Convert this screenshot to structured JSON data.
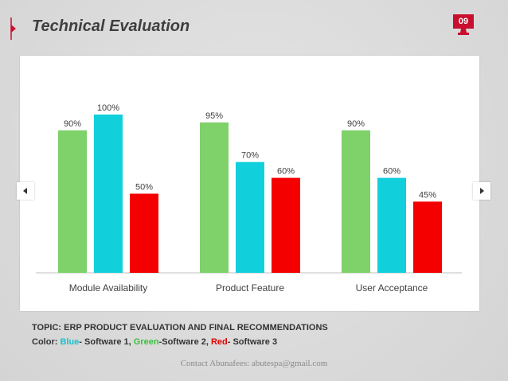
{
  "title": "Technical Evaluation",
  "page_number": "09",
  "colors": {
    "accent": "#c8102e",
    "blue": "#11d0dc",
    "green": "#7fd16a",
    "red": "#f50000"
  },
  "nav": {
    "prev_icon": "triangle-left-icon",
    "next_icon": "triangle-right-icon"
  },
  "chart_data": {
    "type": "bar",
    "categories": [
      "Module Availability",
      "Product Feature",
      "User Acceptance"
    ],
    "series": [
      {
        "name": "Software 2",
        "color": "#7fd16a",
        "values": [
          90,
          95,
          90
        ],
        "labels": [
          "90%",
          "95%",
          "90%"
        ]
      },
      {
        "name": "Software 1",
        "color": "#11d0dc",
        "values": [
          100,
          70,
          60
        ],
        "labels": [
          "100%",
          "70%",
          "60%"
        ]
      },
      {
        "name": "Software 3",
        "color": "#f50000",
        "values": [
          50,
          60,
          45
        ],
        "labels": [
          "50%",
          "60%",
          "45%"
        ]
      }
    ],
    "ylim": [
      0,
      110
    ],
    "grid": false,
    "title": "",
    "xlabel": "",
    "ylabel": ""
  },
  "footer": {
    "topic": "TOPIC: ERP PRODUCT EVALUATION AND FINAL RECOMMENDATIONS",
    "color_prefix": "Color: ",
    "blue_word": "Blue",
    "blue_text": "- Software 1, ",
    "green_word": "Green",
    "green_text": "-Software 2, ",
    "red_word": "Red",
    "red_text": "- Software 3",
    "contact": "Contact Abunafees: abutespa@gmail.com"
  }
}
